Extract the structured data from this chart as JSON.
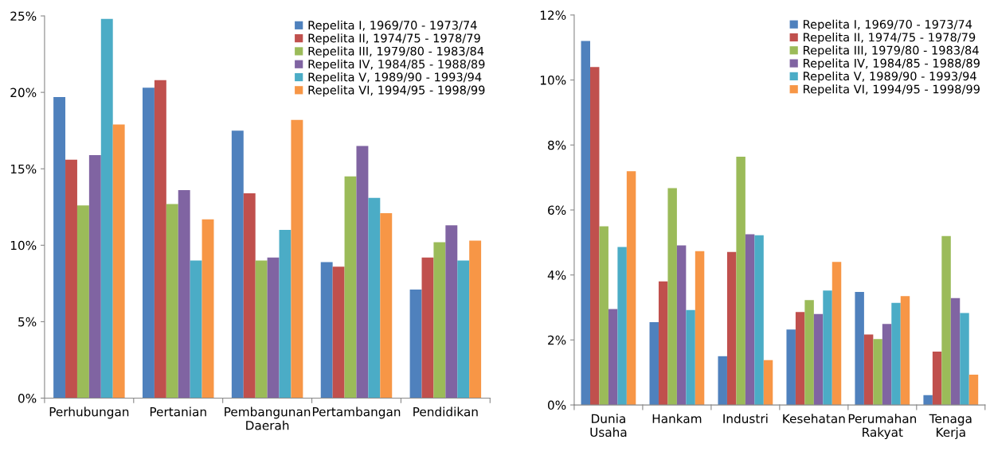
{
  "chart_data": [
    {
      "type": "bar",
      "categories": [
        "Perhubungan",
        "Pertanian",
        "Pembangunan\nDaerah",
        "Pertambangan",
        "Pendidikan"
      ],
      "ylim": [
        0,
        25
      ],
      "yticks": [
        {
          "value": 0,
          "label": "0%"
        },
        {
          "value": 5,
          "label": "5%"
        },
        {
          "value": 10,
          "label": "10%"
        },
        {
          "value": 15,
          "label": "15%"
        },
        {
          "value": 20,
          "label": "20%"
        },
        {
          "value": 25,
          "label": "25%"
        }
      ],
      "grid": false,
      "legend": "top right",
      "series": [
        {
          "name": "Repelita I, 1969/70 - 1973/74",
          "color": "#4f81bd",
          "values": [
            19.7,
            20.3,
            17.5,
            8.9,
            7.1
          ]
        },
        {
          "name": "Repelita II, 1974/75 - 1978/79",
          "color": "#c0504d",
          "values": [
            15.6,
            20.8,
            13.4,
            8.6,
            9.2
          ]
        },
        {
          "name": "Repelita III, 1979/80 - 1983/84",
          "color": "#9bbb59",
          "values": [
            12.6,
            12.7,
            9.0,
            14.5,
            10.2
          ]
        },
        {
          "name": "Repelita IV, 1984/85 - 1988/89",
          "color": "#8064a2",
          "values": [
            15.9,
            13.6,
            9.2,
            16.5,
            11.3
          ]
        },
        {
          "name": "Repelita V, 1989/90 - 1993/94",
          "color": "#4bacc6",
          "values": [
            24.8,
            9.0,
            11.0,
            13.1,
            9.0
          ]
        },
        {
          "name": "Repelita VI, 1994/95 - 1998/99",
          "color": "#f79646",
          "values": [
            17.9,
            11.7,
            18.2,
            12.1,
            10.3
          ]
        }
      ]
    },
    {
      "type": "bar",
      "categories": [
        "Dunia\nUsaha",
        "Hankam",
        "Industri",
        "Kesehatan",
        "Perumahan\nRakyat",
        "Tenaga\nKerja"
      ],
      "ylim": [
        0,
        12
      ],
      "yticks": [
        {
          "value": 0,
          "label": "0%"
        },
        {
          "value": 2,
          "label": "2%"
        },
        {
          "value": 4,
          "label": "4%"
        },
        {
          "value": 6,
          "label": "6%"
        },
        {
          "value": 8,
          "label": "8%"
        },
        {
          "value": 10,
          "label": "10%"
        },
        {
          "value": 12,
          "label": "12%"
        }
      ],
      "grid": false,
      "legend": "top right",
      "series": [
        {
          "name": "Repelita I, 1969/70 - 1973/74",
          "color": "#4f81bd",
          "values": [
            11.2,
            2.55,
            1.5,
            2.32,
            3.48,
            0.3
          ]
        },
        {
          "name": "Repelita II, 1974/75 - 1978/79",
          "color": "#c0504d",
          "values": [
            10.4,
            3.8,
            4.71,
            2.86,
            2.17,
            1.64
          ]
        },
        {
          "name": "Repelita III, 1979/80 - 1983/84",
          "color": "#9bbb59",
          "values": [
            5.5,
            6.67,
            7.64,
            3.23,
            2.03,
            5.2
          ]
        },
        {
          "name": "Repelita IV, 1984/85 - 1988/89",
          "color": "#8064a2",
          "values": [
            2.95,
            4.91,
            5.25,
            2.8,
            2.49,
            3.29
          ]
        },
        {
          "name": "Repelita V, 1989/90 - 1993/94",
          "color": "#4bacc6",
          "values": [
            4.86,
            2.92,
            5.22,
            3.52,
            3.14,
            2.83
          ]
        },
        {
          "name": "Repelita VI, 1994/95 - 1998/99",
          "color": "#f79646",
          "values": [
            7.19,
            4.73,
            1.38,
            4.4,
            3.35,
            0.93
          ]
        }
      ]
    }
  ]
}
